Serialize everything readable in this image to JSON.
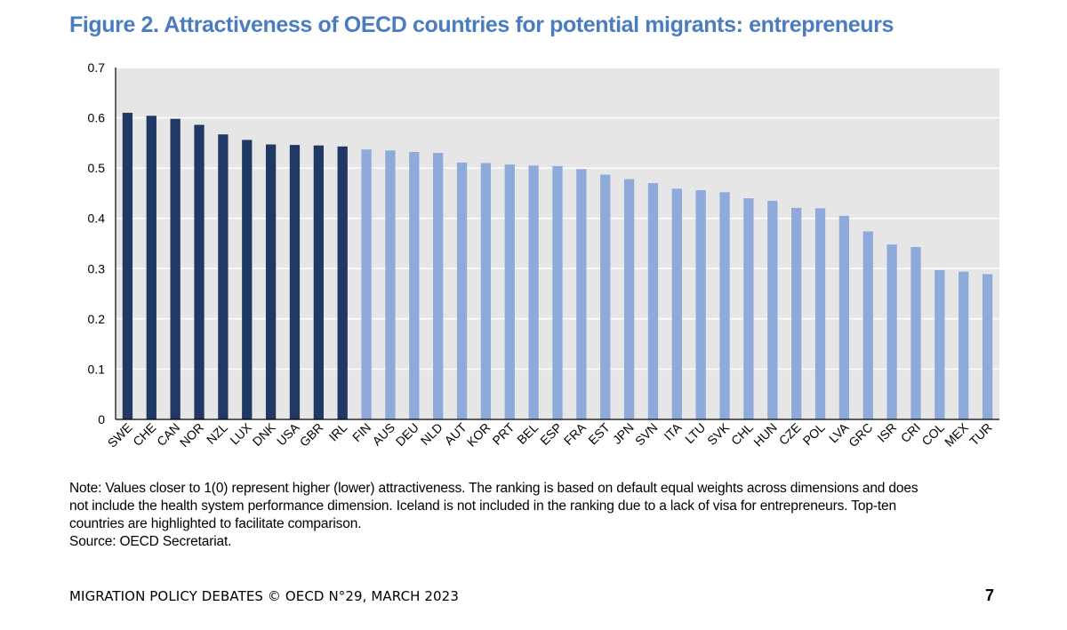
{
  "title": "Figure 2. Attractiveness of OECD countries for potential migrants: entrepreneurs",
  "chart_data": {
    "type": "bar",
    "categories": [
      "SWE",
      "CHE",
      "CAN",
      "NOR",
      "NZL",
      "LUX",
      "DNK",
      "USA",
      "GBR",
      "IRL",
      "FIN",
      "AUS",
      "DEU",
      "NLD",
      "AUT",
      "KOR",
      "PRT",
      "BEL",
      "ESP",
      "FRA",
      "EST",
      "JPN",
      "SVN",
      "ITA",
      "LTU",
      "SVK",
      "CHL",
      "HUN",
      "CZE",
      "POL",
      "LVA",
      "GRC",
      "ISR",
      "CRI",
      "COL",
      "MEX",
      "TUR"
    ],
    "values": [
      0.61,
      0.604,
      0.598,
      0.586,
      0.567,
      0.556,
      0.547,
      0.546,
      0.545,
      0.543,
      0.537,
      0.535,
      0.532,
      0.53,
      0.511,
      0.51,
      0.507,
      0.505,
      0.504,
      0.498,
      0.487,
      0.478,
      0.47,
      0.459,
      0.456,
      0.452,
      0.44,
      0.435,
      0.421,
      0.42,
      0.405,
      0.374,
      0.348,
      0.343,
      0.297,
      0.294,
      0.289
    ],
    "highlight_count": 10,
    "ylim": [
      0,
      0.7
    ],
    "yticks": [
      0,
      0.1,
      0.2,
      0.3,
      0.4,
      0.5,
      0.6,
      0.7
    ],
    "ytick_labels": [
      "0",
      "0.1",
      "0.2",
      "0.3",
      "0.4",
      "0.5",
      "0.6",
      "0.7"
    ],
    "grid": true,
    "colors": {
      "highlight": "#1f3864",
      "normal": "#8eaadb",
      "plot_background": "#e6e6e6",
      "gridline": "#ffffff",
      "axis": "#000000"
    }
  },
  "notes": {
    "line1": "Note: Values closer to 1(0) represent higher (lower) attractiveness. The ranking is based on default equal weights across dimensions and does",
    "line2": "not include the health system performance dimension. Iceland is not included in the ranking due to a lack of visa for entrepreneurs. Top-ten",
    "line3": "countries are highlighted to facilitate comparison.",
    "source": "Source: OECD Secretariat."
  },
  "footer": {
    "publication": "MIGRATION POLICY DEBATES © OECD N°29, MARCH 2023",
    "page_number": "7"
  }
}
